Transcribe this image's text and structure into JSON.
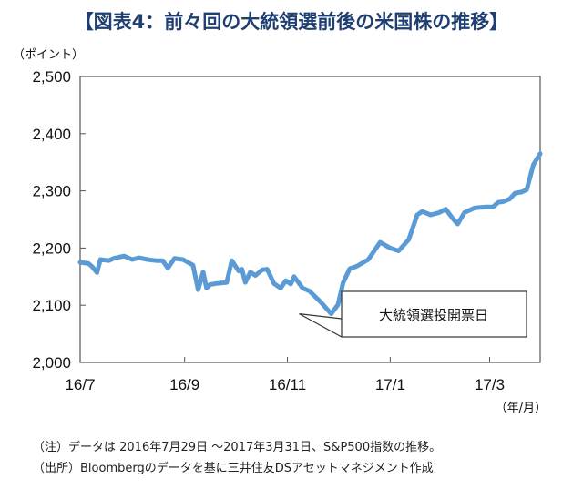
{
  "title": "【図表4：前々回の大統領選前後の米国株の推移】",
  "y_unit": "（ポイント）",
  "x_unit": "（年/月）",
  "annotation": "大統領選投開票日",
  "footnotes": [
    "（注）データは 2016年7月29日 ～2017年3月31日、S&P500指数の推移。",
    "（出所）Bloombergのデータを基に三井住友DSアセットマネジメント作成"
  ],
  "colors": {
    "line": "#5b9bd5",
    "title": "#1f3f72",
    "frame": "#555555"
  },
  "chart_data": {
    "type": "line",
    "series_color": "#5b9bd5",
    "ylim": [
      2000,
      2500
    ],
    "yticks": [
      2000,
      2100,
      2200,
      2300,
      2400,
      2500
    ],
    "ytick_labels": [
      "2,000",
      "2,100",
      "2,200",
      "2,300",
      "2,400",
      "2,500"
    ],
    "xlim": [
      "2016-07-01",
      "2017-03-31"
    ],
    "xtick_labels": [
      "16/7",
      "16/9",
      "16/11",
      "17/1",
      "17/3"
    ],
    "xtick_dates": [
      "2016-07-01",
      "2016-09-01",
      "2016-11-01",
      "2017-01-01",
      "2017-03-01"
    ],
    "grid": false,
    "annotation_point": {
      "date": "2016-11-08",
      "value": 2085
    },
    "points": [
      [
        "2016-07-01",
        2175
      ],
      [
        "2016-07-06",
        2173
      ],
      [
        "2016-07-08",
        2168
      ],
      [
        "2016-07-11",
        2157
      ],
      [
        "2016-07-13",
        2180
      ],
      [
        "2016-07-18",
        2178
      ],
      [
        "2016-07-21",
        2182
      ],
      [
        "2016-07-27",
        2186
      ],
      [
        "2016-08-01",
        2180
      ],
      [
        "2016-08-05",
        2183
      ],
      [
        "2016-08-10",
        2180
      ],
      [
        "2016-08-15",
        2178
      ],
      [
        "2016-08-19",
        2178
      ],
      [
        "2016-08-22",
        2165
      ],
      [
        "2016-08-26",
        2182
      ],
      [
        "2016-08-31",
        2180
      ],
      [
        "2016-09-06",
        2170
      ],
      [
        "2016-09-09",
        2127
      ],
      [
        "2016-09-12",
        2158
      ],
      [
        "2016-09-14",
        2130
      ],
      [
        "2016-09-16",
        2136
      ],
      [
        "2016-09-20",
        2138
      ],
      [
        "2016-09-26",
        2140
      ],
      [
        "2016-09-29",
        2178
      ],
      [
        "2016-10-03",
        2160
      ],
      [
        "2016-10-05",
        2163
      ],
      [
        "2016-10-07",
        2140
      ],
      [
        "2016-10-10",
        2158
      ],
      [
        "2016-10-13",
        2152
      ],
      [
        "2016-10-17",
        2162
      ],
      [
        "2016-10-20",
        2163
      ],
      [
        "2016-10-24",
        2138
      ],
      [
        "2016-10-28",
        2130
      ],
      [
        "2016-10-31",
        2143
      ],
      [
        "2016-11-03",
        2137
      ],
      [
        "2016-11-05",
        2150
      ],
      [
        "2016-11-10",
        2130
      ],
      [
        "2016-11-14",
        2125
      ],
      [
        "2016-11-21",
        2105
      ],
      [
        "2016-11-27",
        2085
      ],
      [
        "2016-12-01",
        2101
      ],
      [
        "2016-12-04",
        2139
      ],
      [
        "2016-12-08",
        2164
      ],
      [
        "2016-12-12",
        2168
      ],
      [
        "2016-12-19",
        2180
      ],
      [
        "2016-12-26",
        2210
      ],
      [
        "2017-01-01",
        2200
      ],
      [
        "2017-01-06",
        2195
      ],
      [
        "2017-01-12",
        2215
      ],
      [
        "2017-01-17",
        2258
      ],
      [
        "2017-01-20",
        2264
      ],
      [
        "2017-01-25",
        2258
      ],
      [
        "2017-01-30",
        2262
      ],
      [
        "2017-02-03",
        2268
      ],
      [
        "2017-02-07",
        2252
      ],
      [
        "2017-02-10",
        2242
      ],
      [
        "2017-02-14",
        2262
      ],
      [
        "2017-02-20",
        2270
      ],
      [
        "2017-02-27",
        2272
      ],
      [
        "2017-03-03",
        2272
      ],
      [
        "2017-03-06",
        2280
      ],
      [
        "2017-03-09",
        2281
      ],
      [
        "2017-03-13",
        2286
      ],
      [
        "2017-03-16",
        2296
      ],
      [
        "2017-03-20",
        2298
      ],
      [
        "2017-03-23",
        2302
      ],
      [
        "2017-03-27",
        2346
      ],
      [
        "2017-03-31",
        2365
      ]
    ]
  }
}
